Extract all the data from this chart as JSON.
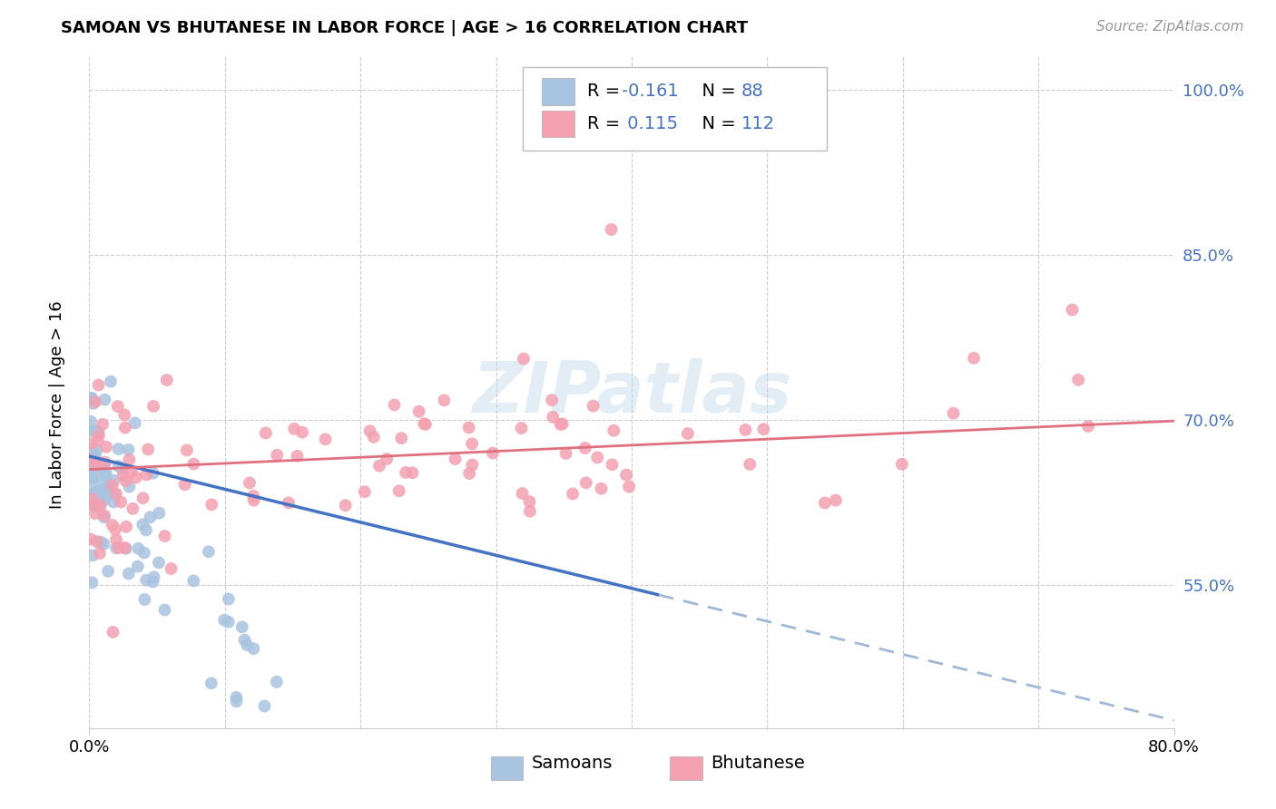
{
  "title": "SAMOAN VS BHUTANESE IN LABOR FORCE | AGE > 16 CORRELATION CHART",
  "source_text": "Source: ZipAtlas.com",
  "ylabel": "In Labor Force | Age > 16",
  "xlim": [
    0.0,
    0.8
  ],
  "ylim": [
    0.42,
    1.03
  ],
  "yticks": [
    0.55,
    0.7,
    0.85,
    1.0
  ],
  "ytick_labels": [
    "55.0%",
    "70.0%",
    "85.0%",
    "100.0%"
  ],
  "xticks": [
    0.0,
    0.1,
    0.2,
    0.3,
    0.4,
    0.5,
    0.6,
    0.7,
    0.8
  ],
  "samoan_color": "#a8c4e0",
  "bhutanese_color": "#f4a0b0",
  "samoan_R": -0.161,
  "samoan_N": 88,
  "bhutanese_R": 0.115,
  "bhutanese_N": 112,
  "trend_color_samoan_solid": "#4472c4",
  "trend_color_samoan_dashed": "#a0b8d8",
  "trend_color_bhutanese": "#e07080",
  "watermark": "ZIPatlas",
  "legend_label_samoan": "Samoans",
  "legend_label_bhutanese": "Bhutanese",
  "blue_color": "#4472c4",
  "grid_color": "#cccccc",
  "title_fontsize": 13,
  "tick_fontsize": 13,
  "legend_fontsize": 14
}
